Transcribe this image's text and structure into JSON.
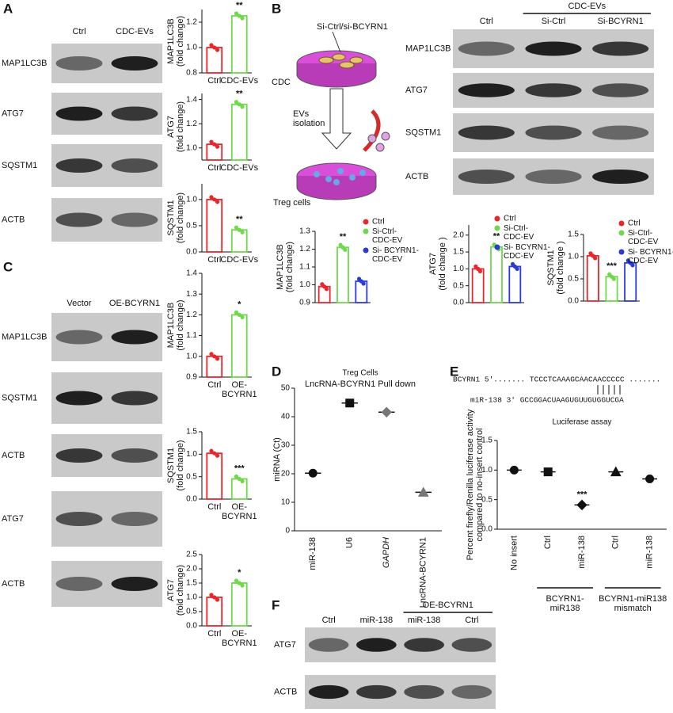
{
  "panels": {
    "A": {
      "letter": "A",
      "blot": {
        "columns": [
          "Ctrl",
          "CDC-EVs"
        ],
        "rows": [
          "MAP1LC3B",
          "ATG7",
          "SQSTM1",
          "ACTB"
        ]
      }
    },
    "B": {
      "letter": "B",
      "diagram": {
        "labels": [
          "Si-Ctrl/si-BCYRN1",
          "CDC",
          "EVs\nisolation",
          "Treg cells"
        ]
      },
      "blot": {
        "group": "CDC-EVs",
        "columns": [
          "Ctrl",
          "Si-Ctrl",
          "Si-BCYRN1"
        ],
        "rows": [
          "MAP1LC3B",
          "ATG7",
          "SQSTM1",
          "ACTB"
        ]
      }
    },
    "C": {
      "letter": "C",
      "blot": {
        "columns": [
          "Vector",
          "OE-BCYRN1"
        ],
        "rows": [
          "MAP1LC3B",
          "SQSTM1",
          "ACTB",
          "ATG7",
          "ACTB"
        ]
      }
    },
    "D": {
      "letter": "D"
    },
    "E": {
      "letter": "E",
      "sequence": {
        "top": "BCYRN1  5′....... TCCCTCAAAGCAACAACCCCC .......",
        "bottom": "miR-138  3′ GCCGGACUAAGUGUUGUGGUCGA"
      }
    },
    "F": {
      "letter": "F",
      "blot": {
        "group": "OE-BCYRN1",
        "columns": [
          "Ctrl",
          "miR-138",
          "miR-138",
          "Ctrl"
        ],
        "rows": [
          "ATG7",
          "ACTB"
        ]
      }
    }
  },
  "chart_data": [
    {
      "type": "bar",
      "ylabel": "MAP1LC3B\n(fold change)",
      "categories": [
        "Ctrl",
        "CDC-EVs"
      ],
      "values": [
        1.0,
        1.25
      ],
      "colors": [
        "#e8262b",
        "#6fd94a"
      ],
      "significance": [
        null,
        "**"
      ],
      "ylim": [
        0.8,
        1.3
      ],
      "yticks": [
        0.8,
        {
          "value": 1.0,
          "label": "1.0"
        },
        1.2
      ]
    },
    {
      "type": "bar",
      "ylabel": "ATG7\n(fold change)",
      "categories": [
        "Ctrl",
        "CDC-EVs"
      ],
      "values": [
        1.03,
        1.36
      ],
      "colors": [
        "#e8262b",
        "#6fd94a"
      ],
      "significance": [
        null,
        "**"
      ],
      "ylim": [
        0.9,
        1.45
      ],
      "yticks": [
        {
          "value": 1.0,
          "label": "1.0"
        },
        1.2,
        1.4
      ]
    },
    {
      "type": "bar",
      "ylabel": "SQSTM1\n(fold change)",
      "categories": [
        "Ctrl",
        "CDC-EVs"
      ],
      "values": [
        1.0,
        0.42
      ],
      "colors": [
        "#e8262b",
        "#6fd94a"
      ],
      "significance": [
        null,
        "**"
      ],
      "ylim": [
        0,
        1.3
      ],
      "yticks": [
        {
          "value": 0,
          "label": "0.0"
        },
        0.5,
        {
          "value": 1.0,
          "label": "1.0"
        }
      ]
    },
    {
      "type": "bar",
      "ylabel": "MAP1LC3B\n(fold change)",
      "series": [
        {
          "name": "Ctrl",
          "color": "#e8262b",
          "values": [
            0.99
          ]
        },
        {
          "name": "Si-Ctrl-\nCDC-EV",
          "color": "#6fd94a",
          "values": [
            1.21
          ]
        },
        {
          "name": "Si- BCYRN1-\nCDC-EV",
          "color": "#2a3ad6",
          "values": [
            1.02
          ]
        }
      ],
      "significance": [
        null,
        "**",
        null
      ],
      "ylim": [
        0.9,
        1.3
      ],
      "yticks": [
        0.9,
        {
          "value": 1.0,
          "label": "1.0"
        },
        1.1,
        1.2,
        1.3
      ]
    },
    {
      "type": "bar",
      "ylabel": "ATG7\n(fold change )",
      "series": [
        {
          "name": "Ctrl",
          "color": "#e8262b",
          "values": [
            1.0
          ]
        },
        {
          "name": "Si-Ctrl-\nCDC-EV",
          "color": "#6fd94a",
          "values": [
            1.65
          ]
        },
        {
          "name": "Si- BCYRN1-\nCDC-EV",
          "color": "#2a3ad6",
          "values": [
            1.07
          ]
        }
      ],
      "significance": [
        null,
        "**",
        null
      ],
      "ylim": [
        0,
        2.3
      ],
      "yticks": [
        {
          "value": 0,
          "label": "0.0"
        },
        0.5,
        {
          "value": 1.0,
          "label": "1.0"
        },
        1.5,
        {
          "value": 2.0,
          "label": "2.0"
        }
      ]
    },
    {
      "type": "bar",
      "ylabel": "SQSTM1\n(fold change )",
      "series": [
        {
          "name": "Ctrl",
          "color": "#e8262b",
          "values": [
            1.02
          ]
        },
        {
          "name": "Si-Ctrl-\nCDC-EV",
          "color": "#6fd94a",
          "values": [
            0.55
          ]
        },
        {
          "name": "Si- BCYRN1-\nCDC-EV",
          "color": "#2a3ad6",
          "values": [
            0.86
          ]
        }
      ],
      "significance": [
        null,
        "***",
        null
      ],
      "ylim": [
        0,
        1.5
      ],
      "yticks": [
        {
          "value": 0,
          "label": "0.0"
        },
        0.5,
        {
          "value": 1.0,
          "label": "1.0"
        },
        1.5
      ]
    },
    {
      "type": "bar",
      "ylabel": "MAP1LC3B\n(fold change)",
      "categories": [
        "Ctrl",
        "OE-\nBCYRN1"
      ],
      "values": [
        1.0,
        1.2
      ],
      "colors": [
        "#e8262b",
        "#6fd94a"
      ],
      "significance": [
        null,
        "*"
      ],
      "ylim": [
        0.9,
        1.4
      ],
      "yticks": [
        0.9,
        {
          "value": 1.0,
          "label": "1.0"
        },
        1.1,
        1.2,
        1.3,
        1.4
      ]
    },
    {
      "type": "bar",
      "ylabel": "SQSTM1\n(fold change)",
      "categories": [
        "Ctrl",
        "OE-\nBCYRN1"
      ],
      "values": [
        1.02,
        0.45
      ],
      "colors": [
        "#e8262b",
        "#6fd94a"
      ],
      "significance": [
        null,
        "***"
      ],
      "ylim": [
        0,
        1.5
      ],
      "yticks": [
        {
          "value": 0,
          "label": "0.0"
        },
        0.5,
        {
          "value": 1.0,
          "label": "1.0"
        },
        1.5
      ]
    },
    {
      "type": "bar",
      "ylabel": "ATG7\n(fold change)",
      "categories": [
        "Ctrl",
        "OE-\nBCYRN1"
      ],
      "values": [
        1.0,
        1.5
      ],
      "colors": [
        "#e8262b",
        "#6fd94a"
      ],
      "significance": [
        null,
        "*"
      ],
      "ylim": [
        0,
        2.5
      ],
      "yticks": [
        {
          "value": 0,
          "label": "0.0"
        },
        0.5,
        {
          "value": 1.0,
          "label": "1.0"
        },
        1.5,
        {
          "value": 2.0,
          "label": "2.0"
        },
        2.5
      ]
    },
    {
      "type": "dot",
      "title": "Treg Cells",
      "subtitle": "LncRNA-BCYRN1 Pull down",
      "ylabel": "miRNA (Ct)",
      "categories": [
        "miR-138",
        "U6",
        "GAPDH",
        "LncRNA-BCYRN1"
      ],
      "values": [
        20.2,
        44.8,
        41.6,
        13.5
      ],
      "colors": [
        "#111111",
        "#111111",
        "#777777",
        "#777777"
      ],
      "ylim": [
        0,
        50
      ],
      "yticks": [
        0,
        10,
        20,
        30,
        40,
        50
      ]
    },
    {
      "type": "dot",
      "title": "Luciferase assay",
      "ylabel": "Percent firefly/Renilla luciferase activity\ncompared to no-insert control",
      "categories": [
        "No insert",
        "Ctrl",
        "miR-138",
        "Ctrl",
        "miR-138"
      ],
      "values": [
        1.0,
        0.97,
        0.41,
        0.97,
        0.85
      ],
      "colors": [
        "#111111",
        "#111111",
        "#111111",
        "#111111",
        "#111111"
      ],
      "significance": [
        null,
        null,
        "***",
        null,
        null
      ],
      "groups": [
        "BCYRN1-\nmiR138",
        "BCYRN1-miR138\nmismatch"
      ],
      "ylim": [
        0,
        1.5
      ],
      "yticks": [
        {
          "value": 0,
          "label": "0.0"
        },
        0.5,
        {
          "value": 1.0,
          "label": "1.0"
        },
        1.5
      ]
    }
  ]
}
